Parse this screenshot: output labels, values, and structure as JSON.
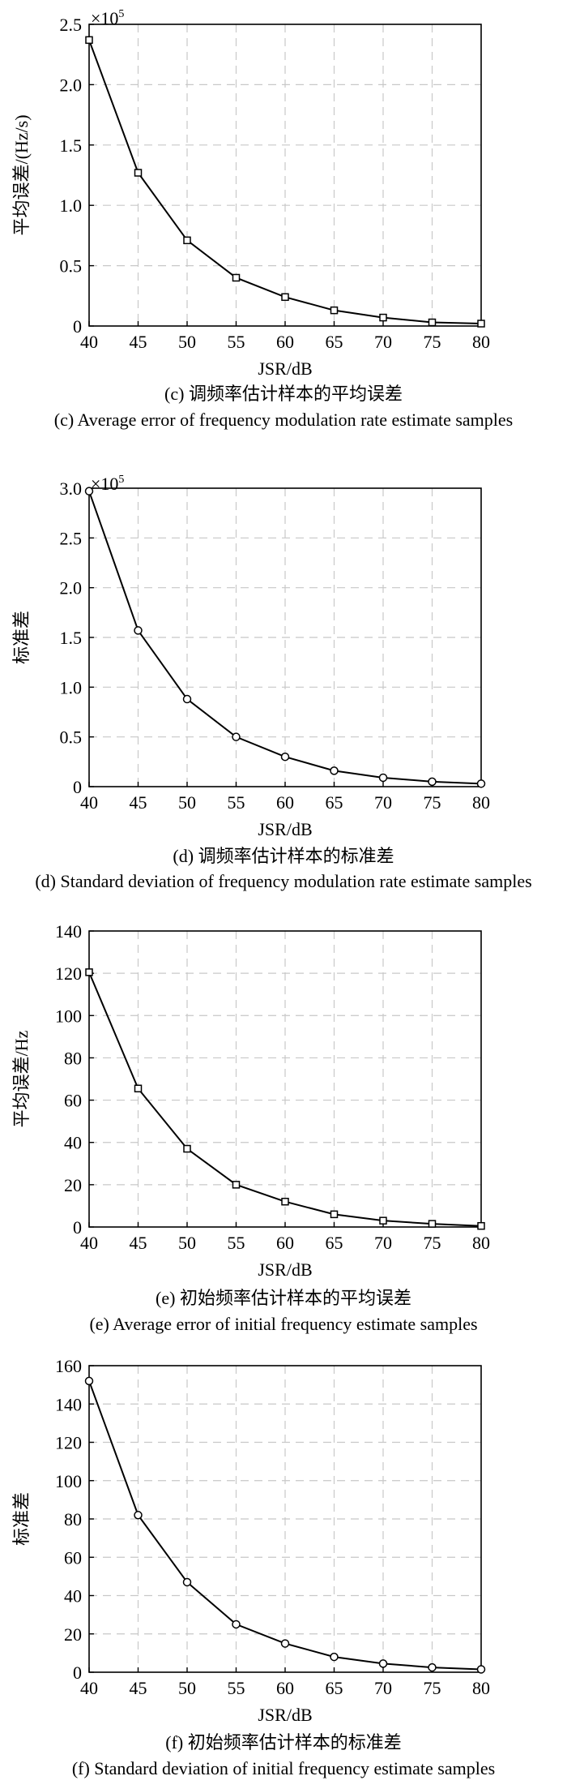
{
  "chart_data": [
    {
      "type": "line",
      "x": [
        40,
        45,
        50,
        55,
        60,
        65,
        70,
        75,
        80
      ],
      "series": [
        {
          "values": [
            2.37,
            1.27,
            0.71,
            0.4,
            0.24,
            0.13,
            0.07,
            0.03,
            0.02
          ],
          "marker": "square"
        }
      ],
      "xlabel": "JSR/dB",
      "ylabel": "平均误差/(Hz/s)",
      "y_multiplier": "×10",
      "y_multiplier_exp": "5",
      "xlim": [
        40,
        80
      ],
      "ylim": [
        0,
        2.5
      ],
      "xticks": [
        "40",
        "45",
        "50",
        "55",
        "60",
        "65",
        "70",
        "75",
        "80"
      ],
      "yticks": [
        "0",
        "0.5",
        "1.0",
        "1.5",
        "2.0",
        "2.5"
      ],
      "grid": true,
      "caption_cn": "(c) 调频率估计样本的平均误差",
      "caption_en": "(c) Average error of frequency modulation rate estimate samples"
    },
    {
      "type": "line",
      "x": [
        40,
        45,
        50,
        55,
        60,
        65,
        70,
        75,
        80
      ],
      "series": [
        {
          "values": [
            2.97,
            1.57,
            0.88,
            0.5,
            0.3,
            0.16,
            0.09,
            0.05,
            0.03
          ],
          "marker": "circle"
        }
      ],
      "xlabel": "JSR/dB",
      "ylabel": "标准差",
      "y_multiplier": "×10",
      "y_multiplier_exp": "5",
      "xlim": [
        40,
        80
      ],
      "ylim": [
        0,
        3.0
      ],
      "xticks": [
        "40",
        "45",
        "50",
        "55",
        "60",
        "65",
        "70",
        "75",
        "80"
      ],
      "yticks": [
        "0",
        "0.5",
        "1.0",
        "1.5",
        "2.0",
        "2.5",
        "3.0"
      ],
      "grid": true,
      "caption_cn": "(d) 调频率估计样本的标准差",
      "caption_en": "(d) Standard deviation of frequency modulation rate estimate samples"
    },
    {
      "type": "line",
      "x": [
        40,
        45,
        50,
        55,
        60,
        65,
        70,
        75,
        80
      ],
      "series": [
        {
          "values": [
            120.5,
            65.5,
            37,
            20,
            12,
            6,
            3,
            1.5,
            0.5
          ],
          "marker": "square"
        }
      ],
      "xlabel": "JSR/dB",
      "ylabel": "平均误差/Hz",
      "y_multiplier": "",
      "y_multiplier_exp": "",
      "xlim": [
        40,
        80
      ],
      "ylim": [
        0,
        140
      ],
      "xticks": [
        "40",
        "45",
        "50",
        "55",
        "60",
        "65",
        "70",
        "75",
        "80"
      ],
      "yticks": [
        "0",
        "20",
        "40",
        "60",
        "80",
        "100",
        "120",
        "140"
      ],
      "grid": true,
      "caption_cn": "(e) 初始频率估计样本的平均误差",
      "caption_en": "(e) Average error of initial frequency estimate samples"
    },
    {
      "type": "line",
      "x": [
        40,
        45,
        50,
        55,
        60,
        65,
        70,
        75,
        80
      ],
      "series": [
        {
          "values": [
            152,
            82,
            47,
            25,
            15,
            8,
            4.5,
            2.5,
            1.5
          ],
          "marker": "circle"
        }
      ],
      "xlabel": "JSR/dB",
      "ylabel": "标准差",
      "y_multiplier": "",
      "y_multiplier_exp": "",
      "xlim": [
        40,
        80
      ],
      "ylim": [
        0,
        160
      ],
      "xticks": [
        "40",
        "45",
        "50",
        "55",
        "60",
        "65",
        "70",
        "75",
        "80"
      ],
      "yticks": [
        "0",
        "20",
        "40",
        "60",
        "80",
        "100",
        "120",
        "140",
        "160"
      ],
      "grid": true,
      "caption_cn": "(f) 初始频率估计样本的标准差",
      "caption_en": "(f) Standard deviation of initial frequency estimate samples"
    }
  ]
}
